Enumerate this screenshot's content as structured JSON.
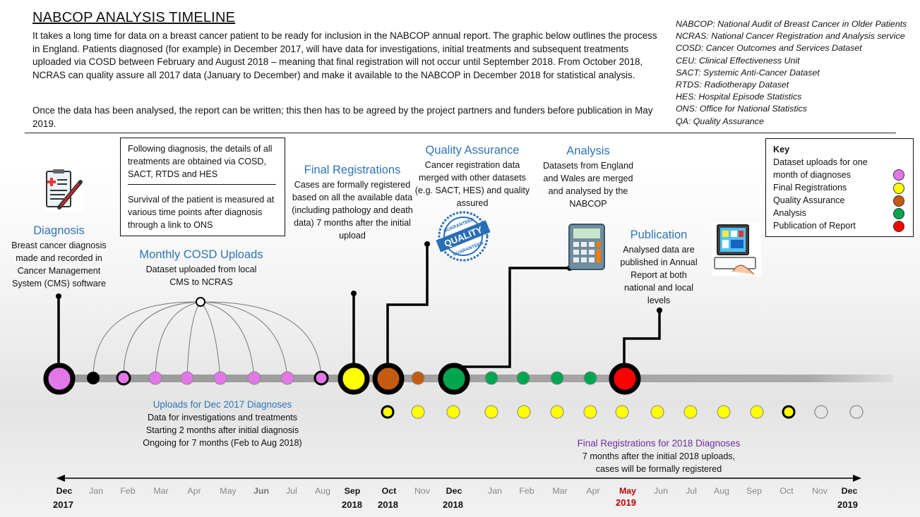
{
  "title": "NABCOP ANALYSIS TIMELINE",
  "intro": {
    "p1": "It takes a long time for data on a breast cancer patient to be ready for inclusion in the NABCOP annual report. The graphic below outlines the process in England. Patients diagnosed (for example) in December 2017, will have data for investigations, initial treatments and subsequent treatments uploaded via COSD between February and August 2018 – meaning that final registration will not occur until September 2018. From October 2018, NCRAS can quality assure all 2017 data (January to December) and make it available to the NABCOP in December 2018 for statistical analysis.",
    "p2": "Once the data has been analysed, the report can be written; this then has to be agreed by the project partners and funders before publication in May 2019."
  },
  "abbreviations": [
    "NABCOP: National Audit of Breast Cancer in Older Patients",
    "NCRAS: National Cancer Registration and Analysis service",
    "COSD: Cancer Outcomes and Services Dataset",
    "CEU: Clinical Effectiveness Unit",
    "SACT: Systemic Anti-Cancer Dataset",
    "RTDS: Radiotherapy Dataset",
    "HES: Hospital Episode Statistics",
    "ONS: Office for National Statistics",
    "QA: Quality Assurance"
  ],
  "treatment_box": {
    "p1": "Following diagnosis, the details of all treatments are obtained via COSD, SACT, RTDS and HES",
    "p2": "Survival of the patient is measured at various time points after diagnosis through a link to ONS"
  },
  "stages": {
    "diagnosis": {
      "heading": "Diagnosis",
      "text": "Breast cancer diagnosis made and recorded in Cancer Management System (CMS) software"
    },
    "cosd": {
      "heading": "Monthly COSD Uploads",
      "text": "Dataset uploaded from local CMS to NCRAS"
    },
    "final_reg": {
      "heading": "Final Registrations",
      "text": "Cases are formally registered based on all the available data (including pathology and death data) 7 months after the initial upload"
    },
    "qa": {
      "heading": "Quality Assurance",
      "text": "Cancer registration data merged with other datasets (e.g. SACT, HES) and quality assured"
    },
    "analysis": {
      "heading": "Analysis",
      "text": "Datasets from England and Wales are merged and analysed by the NABCOP"
    },
    "publication": {
      "heading": "Publication",
      "text": "Analysed data are published in Annual Report at both national and local levels"
    }
  },
  "key": {
    "title": "Key",
    "items": [
      {
        "label": "Dataset uploads for one month of diagnoses",
        "color": "#E278E8"
      },
      {
        "label": "Final Registrations",
        "color": "#FFFF00"
      },
      {
        "label": "Quality Assurance",
        "color": "#C55A11"
      },
      {
        "label": "Analysis",
        "color": "#00A550"
      },
      {
        "label": "Publication of Report",
        "color": "#FF0000"
      }
    ]
  },
  "uploads_note": {
    "heading": "Uploads for Dec 2017 Diagnoses",
    "lines": [
      "Data for investigations and treatments",
      "Starting 2 months after initial diagnosis",
      "Ongoing for 7 months (Feb to Aug 2018)"
    ]
  },
  "final_2018_note": {
    "heading": "Final Registrations for 2018 Diagnoses",
    "lines": [
      "7 months after the initial 2018 uploads,",
      "cases will be formally registered"
    ]
  },
  "quality_badge": {
    "top": "GUARANTEED",
    "main": "QUALITY",
    "bottom": "GUARANTEED"
  },
  "months": [
    "Dec",
    "Jan",
    "Feb",
    "Mar",
    "Apr",
    "May",
    "Jun",
    "Jul",
    "Aug",
    "Sep",
    "Oct",
    "Nov",
    "Dec",
    "Jan",
    "Feb",
    "Mar",
    "Apr",
    "May",
    "Jun",
    "Jul",
    "Aug",
    "Sep",
    "Oct",
    "Nov",
    "Dec"
  ],
  "years": {
    "y2017": "2017",
    "sep2018": "2018",
    "oct2018": "2018",
    "dec2018": "2018",
    "may2019": "2019",
    "dec2019": "2019"
  },
  "colors": {
    "heading": "#2E75B6",
    "purple_heading": "#7030A0",
    "highlight_month": "#C00000"
  }
}
